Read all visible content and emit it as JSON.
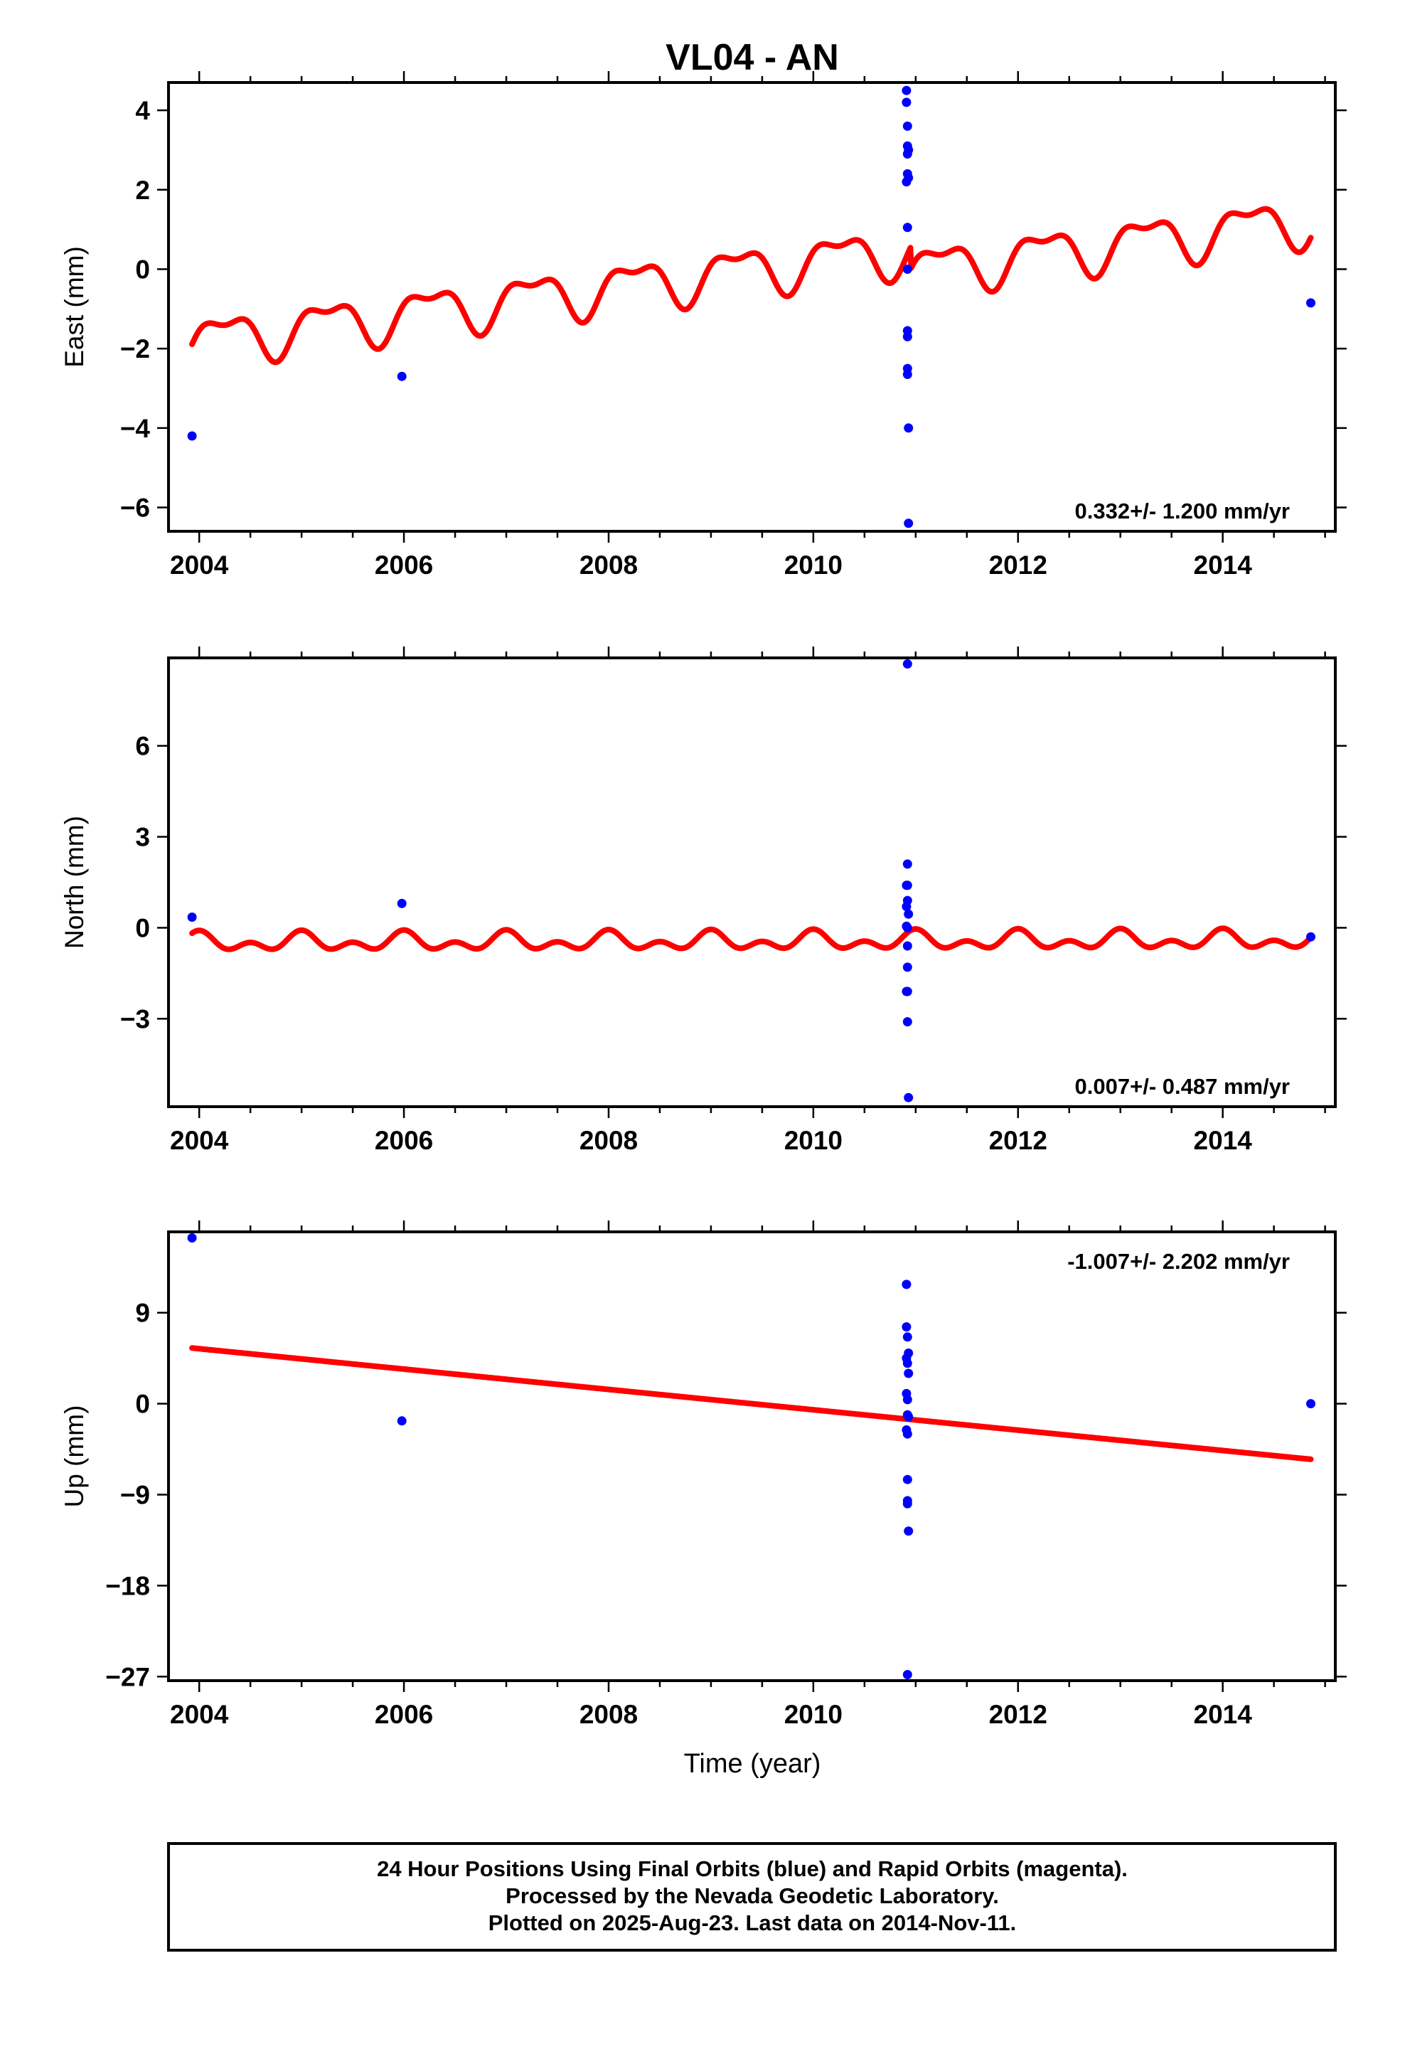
{
  "title": "VL04 - AN",
  "xlabel": "Time (year)",
  "colors": {
    "data": "#0000ff",
    "model": "#ff0000",
    "frame": "#000000"
  },
  "footer": {
    "line1": "24 Hour Positions Using Final Orbits (blue) and Rapid Orbits (magenta).",
    "line2": "Processed by the Nevada Geodetic Laboratory.",
    "line3": "Plotted on 2025-Aug-23. Last data on 2014-Nov-11."
  },
  "chart_data": [
    {
      "type": "scatter",
      "ylabel": "East (mm)",
      "rate_label": "0.332+/- 1.200 mm/yr",
      "xlim": [
        2003.7,
        2015.1
      ],
      "ylim": [
        -6.6,
        4.7
      ],
      "xticks": [
        "2004",
        "2006",
        "2008",
        "2010",
        "2012",
        "2014"
      ],
      "yticks": [
        "4",
        "2",
        "0",
        "−2",
        "−4",
        "−6"
      ],
      "yticks_values": [
        4,
        2,
        0,
        -2,
        -4,
        -6
      ],
      "grid": false,
      "series": [
        {
          "kind": "points",
          "x": [
            2003.93,
            2005.98,
            2010.91,
            2010.91,
            2010.92,
            2010.92,
            2010.92,
            2010.92,
            2010.91,
            2010.92,
            2010.92,
            2010.92,
            2010.92,
            2010.92,
            2010.92,
            2010.93,
            2010.93,
            2010.93,
            2010.93,
            2014.86
          ],
          "y": [
            -4.2,
            -2.7,
            4.5,
            4.2,
            3.6,
            3.1,
            2.9,
            2.4,
            2.2,
            1.05,
            0.0,
            -1.55,
            -1.7,
            -2.5,
            -2.65,
            -4.0,
            -6.4,
            2.3,
            3.0,
            -0.85
          ]
        },
        {
          "kind": "model",
          "start": 2003.93,
          "end": 2014.86,
          "ref_year": 2009.4,
          "intercept": 0.0,
          "rate": 0.332,
          "annual_sin": 0.55,
          "annual_cos": 0.0,
          "semiannual_sin": 0.0,
          "semiannual_cos": 0.25,
          "offset_epoch": 2010.95,
          "offset_size": -0.55
        }
      ]
    },
    {
      "type": "scatter",
      "ylabel": "North (mm)",
      "rate_label": "0.007+/- 0.487 mm/yr",
      "xlim": [
        2003.7,
        2015.1
      ],
      "ylim": [
        -5.9,
        8.9
      ],
      "xticks": [
        "2004",
        "2006",
        "2008",
        "2010",
        "2012",
        "2014"
      ],
      "yticks": [
        "6",
        "3",
        "0",
        "−3"
      ],
      "yticks_values": [
        6,
        3,
        0,
        -3
      ],
      "grid": false,
      "series": [
        {
          "kind": "points",
          "x": [
            2003.93,
            2005.98,
            2010.92,
            2010.92,
            2010.91,
            2010.92,
            2010.92,
            2010.91,
            2010.92,
            2010.91,
            2010.92,
            2010.92,
            2010.91,
            2010.92,
            2010.92,
            2010.93,
            2010.93,
            2014.86
          ],
          "y": [
            0.35,
            0.8,
            8.7,
            2.1,
            1.4,
            1.4,
            0.9,
            0.7,
            0.0,
            0.05,
            -0.6,
            -1.3,
            -2.1,
            -2.1,
            -3.1,
            -5.6,
            0.45,
            -0.3
          ]
        },
        {
          "kind": "model",
          "start": 2003.93,
          "end": 2014.86,
          "ref_year": 2009.4,
          "intercept": -0.45,
          "rate": 0.007,
          "annual_sin": 0.0,
          "annual_cos": 0.2,
          "semiannual_sin": 0.0,
          "semiannual_cos": 0.2,
          "offset_epoch": 2010.95,
          "offset_size": 0.0
        }
      ]
    },
    {
      "type": "scatter",
      "ylabel": "Up (mm)",
      "rate_label": "-1.007+/- 2.202 mm/yr",
      "xlim": [
        2003.7,
        2015.1
      ],
      "ylim": [
        -27.4,
        17.0
      ],
      "xticks": [
        "2004",
        "2006",
        "2008",
        "2010",
        "2012",
        "2014"
      ],
      "yticks": [
        "9",
        "0",
        "−9",
        "−18",
        "−27"
      ],
      "yticks_values": [
        9,
        0,
        -9,
        -18,
        -27
      ],
      "grid": false,
      "series": [
        {
          "kind": "points",
          "x": [
            2003.93,
            2005.98,
            2010.91,
            2010.91,
            2010.92,
            2010.91,
            2010.92,
            2010.91,
            2010.92,
            2010.92,
            2010.91,
            2010.92,
            2010.92,
            2010.92,
            2010.92,
            2010.93,
            2010.92,
            2010.93,
            2010.93,
            2010.93,
            2014.86
          ],
          "y": [
            16.4,
            -1.7,
            11.8,
            7.6,
            6.6,
            4.5,
            4.0,
            1.0,
            0.4,
            -1.1,
            -2.6,
            -3.0,
            -7.5,
            -9.6,
            -9.9,
            -12.6,
            -26.8,
            5.0,
            3.0,
            -1.3,
            0.0
          ]
        },
        {
          "kind": "model",
          "start": 2003.93,
          "end": 2014.86,
          "ref_year": 2009.4,
          "intercept": 0.0,
          "rate": -1.007,
          "annual_sin": 0.0,
          "annual_cos": 0.0,
          "semiannual_sin": 0.0,
          "semiannual_cos": 0.0,
          "offset_epoch": 2010.95,
          "offset_size": 0.0
        }
      ]
    }
  ]
}
